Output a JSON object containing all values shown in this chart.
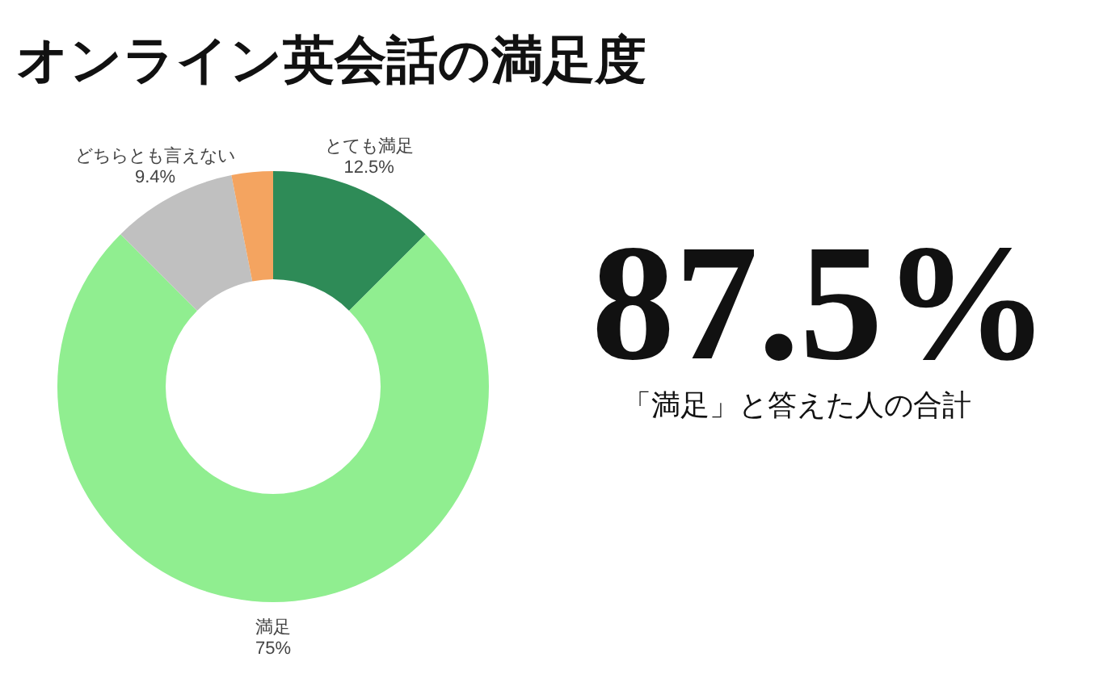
{
  "chart_data": {
    "type": "donut",
    "title": "オンライン英会話の満足度",
    "categories": [
      "とても満足",
      "満足",
      "どちらとも言えない",
      null
    ],
    "values": [
      12.5,
      75,
      9.4,
      3.1
    ],
    "colors": [
      "#2e8b57",
      "#90ee90",
      "#c0c0c0",
      "#f4a460"
    ],
    "value_labels": [
      "12.5%",
      "75%",
      "9.4%",
      null
    ],
    "annotations": [
      "87.5%",
      "「満足」と答えた人の合計"
    ]
  }
}
